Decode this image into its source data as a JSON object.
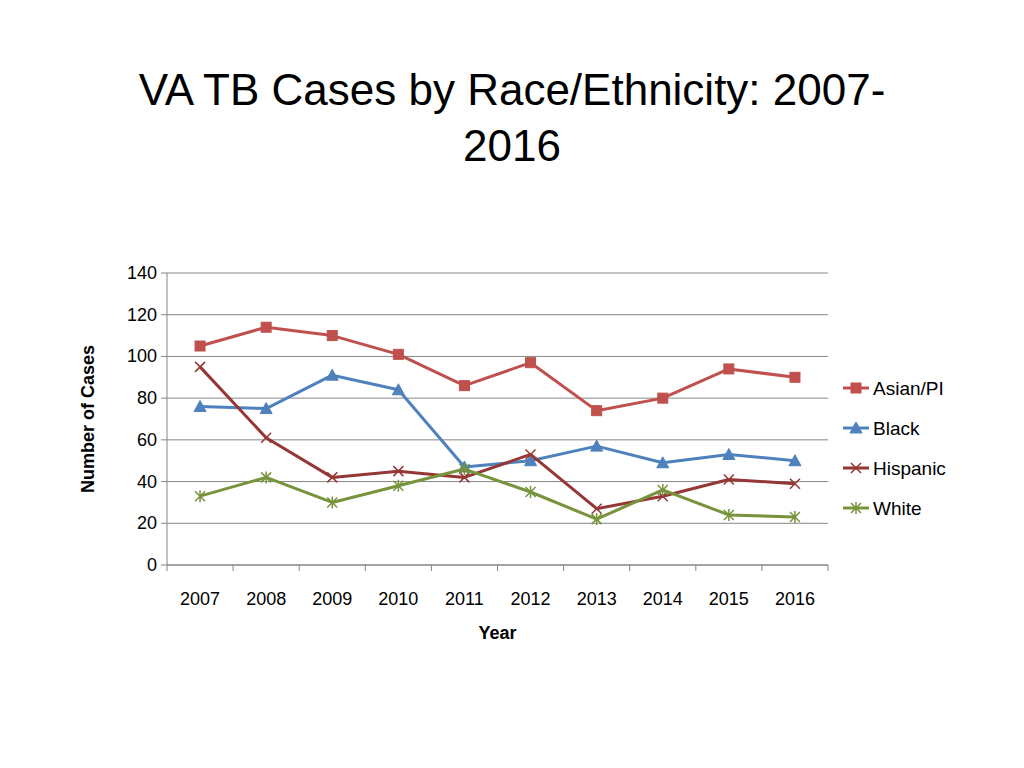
{
  "chart_data": {
    "type": "line",
    "title": "VA TB Cases by Race/Ethnicity: 2007-2016",
    "x_label": "Year",
    "y_label": "Number of Cases",
    "categories": [
      "2007",
      "2008",
      "2009",
      "2010",
      "2011",
      "2012",
      "2013",
      "2014",
      "2015",
      "2016"
    ],
    "series": [
      {
        "name": "Asian/PI",
        "color": "#c0504d",
        "marker": "square",
        "values": [
          105,
          114,
          110,
          101,
          86,
          97,
          74,
          80,
          94,
          90
        ]
      },
      {
        "name": "Black",
        "color": "#4f81bd",
        "marker": "triangle",
        "values": [
          76,
          75,
          91,
          84,
          47,
          50,
          57,
          49,
          53,
          50
        ]
      },
      {
        "name": "Hispanic",
        "color": "#953735",
        "marker": "x",
        "values": [
          95,
          61,
          42,
          45,
          42,
          53,
          27,
          33,
          41,
          39
        ]
      },
      {
        "name": "White",
        "color": "#77933c",
        "marker": "star",
        "values": [
          33,
          42,
          30,
          38,
          46,
          35,
          22,
          36,
          24,
          23
        ]
      }
    ],
    "ylim": [
      0,
      140
    ],
    "yticks": [
      0,
      20,
      40,
      60,
      80,
      100,
      120,
      140
    ],
    "grid": true,
    "legend": "right"
  }
}
